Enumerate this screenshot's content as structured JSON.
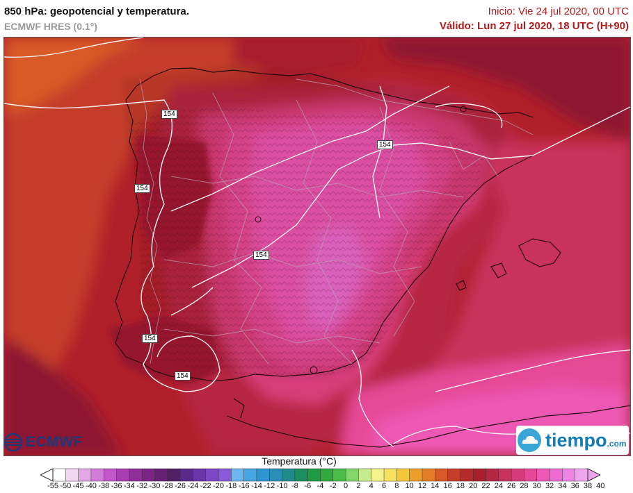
{
  "header": {
    "title": "850 hPa: geopotencial y temperatura.",
    "model": "ECMWF HRES (0.1°)",
    "init": "Inicio: Vie 24 jul 2020, 00 UTC",
    "valid": "Válido: Lun 27 jul 2020, 18 UTC (H+90)"
  },
  "map": {
    "contour_labels": [
      "154",
      "154",
      "154",
      "154",
      "154",
      "154"
    ]
  },
  "logos": {
    "ecmwf": "ECMWF",
    "tiempo": "tiempo",
    "tiempo_suffix": ".com"
  },
  "legend": {
    "title": "Temperatura (°C)",
    "ticks": [
      "-55",
      "-50",
      "-45",
      "-40",
      "-38",
      "-36",
      "-34",
      "-32",
      "-30",
      "-28",
      "-26",
      "-24",
      "-22",
      "-20",
      "-18",
      "-16",
      "-14",
      "-12",
      "-10",
      "-8",
      "-6",
      "-4",
      "-2",
      "0",
      "2",
      "4",
      "6",
      "8",
      "10",
      "12",
      "14",
      "16",
      "18",
      "20",
      "22",
      "24",
      "26",
      "28",
      "30",
      "32",
      "34",
      "36",
      "38",
      "40"
    ],
    "colors": [
      "#ffffff",
      "#f2d6f2",
      "#e2a7e6",
      "#d27bd9",
      "#c058c9",
      "#a93eb2",
      "#8f2e9a",
      "#7a2584",
      "#672073",
      "#512064",
      "#5a2a8a",
      "#6935a8",
      "#7c46c4",
      "#8a5ad8",
      "#6fb6f0",
      "#43a6e0",
      "#2d96cf",
      "#2a8fb4",
      "#218a8a",
      "#1b8d5e",
      "#1f9a45",
      "#30aa3e",
      "#4bbe4a",
      "#84d66c",
      "#c6ec8f",
      "#f3f28b",
      "#f6e25f",
      "#f3c83a",
      "#ee9f2a",
      "#e57c26",
      "#d85a28",
      "#c53d2b",
      "#b52b2b",
      "#a81e2e",
      "#b62542",
      "#c8325c",
      "#d83c78",
      "#e64897",
      "#ec58b4",
      "#ec6cd0",
      "#ec86e2",
      "#eda6ee"
    ]
  }
}
